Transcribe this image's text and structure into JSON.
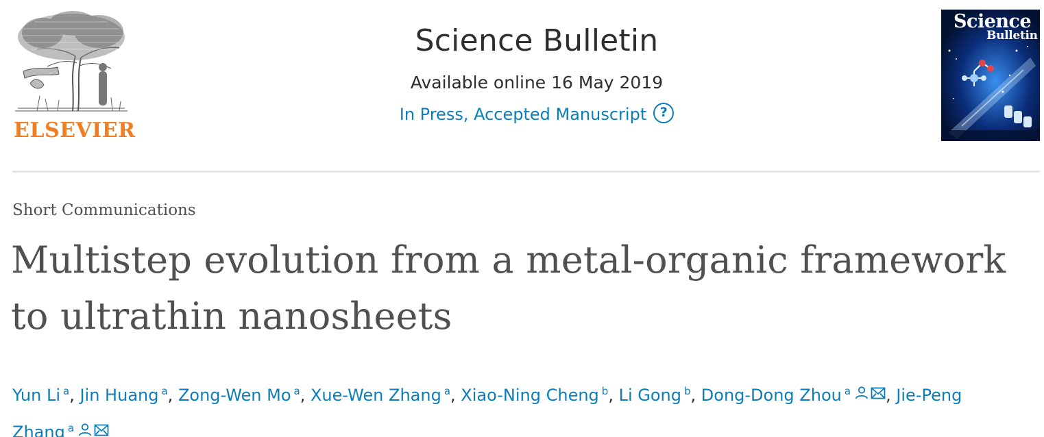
{
  "publisher": {
    "name": "ELSEVIER",
    "logo_icon": "tree-engraving-logo",
    "brand_color": "#f07e22"
  },
  "journal": {
    "title": "Science Bulletin",
    "date_line": "Available online 16 May 2019",
    "status_label": "In Press, Accepted Manuscript",
    "help_icon": "question-circle-icon",
    "link_color": "#0c7dbb"
  },
  "cover": {
    "title": "Science",
    "subtitle": "Bulletin"
  },
  "article": {
    "type": "Short Communications",
    "title": "Multistep evolution from a metal-organic framework to ultrathin nanosheets"
  },
  "authors": [
    {
      "name": "Yun Li",
      "aff": "a",
      "separator": ", "
    },
    {
      "name": "Jin Huang",
      "aff": "a",
      "separator": ", "
    },
    {
      "name": "Zong-Wen Mo",
      "aff": "a",
      "separator": ", "
    },
    {
      "name": "Xue-Wen Zhang",
      "aff": "a",
      "separator": ", "
    },
    {
      "name": "Xiao-Ning Cheng",
      "aff": "b",
      "separator": ", "
    },
    {
      "name": "Li Gong",
      "aff": "b",
      "separator": ", "
    },
    {
      "name": "Dong-Dong Zhou",
      "aff": "a",
      "separator": ", ",
      "icons": [
        "person-icon",
        "envelope-icon"
      ]
    },
    {
      "name": "Jie-Peng Zhang",
      "aff": "a",
      "separator": "",
      "icons": [
        "person-icon",
        "envelope-icon"
      ]
    }
  ]
}
